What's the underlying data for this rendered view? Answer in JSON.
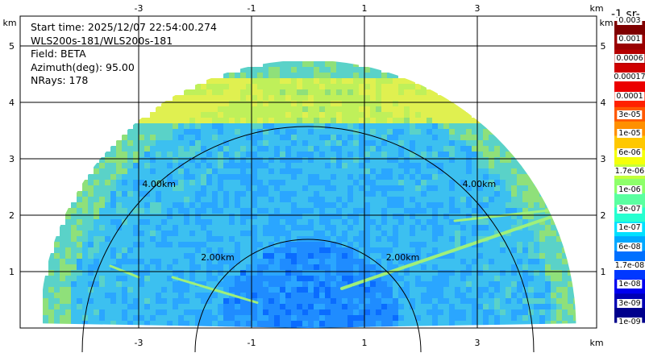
{
  "header": {
    "start_time": "Start time: 2025/12/07 22:54:00.274",
    "instrument": "WLS200s-181/WLS200s-181",
    "field": "Field: BETA",
    "azimuth": "Azimuth(deg): 95.00",
    "nrays": "NRays: 178"
  },
  "axes": {
    "unit": "km",
    "x_ticks": [
      "-3",
      "-1",
      "1",
      "3"
    ],
    "y_ticks": [
      "1",
      "2",
      "3",
      "4",
      "5"
    ],
    "range_rings": [
      "2.00km",
      "4.00km"
    ]
  },
  "colorbar": {
    "title": "-1 sr-",
    "labels": [
      "0.003",
      "0.001",
      "0.0006",
      "0.00017",
      "0.0001",
      "3e-05",
      "1e-05",
      "6e-06",
      "1.7e-06",
      "1e-06",
      "3e-07",
      "1e-07",
      "6e-08",
      "1.7e-08",
      "1e-08",
      "3e-09",
      "1e-09"
    ],
    "colors": [
      "#7f0000",
      "#9a0000",
      "#b50000",
      "#d00000",
      "#eb0000",
      "#ff2000",
      "#ff5800",
      "#ff9000",
      "#ffc800",
      "#f5ff0a",
      "#c3ff3a",
      "#8dff6a",
      "#5affa0",
      "#26ffd0",
      "#00e0ff",
      "#00a8ff",
      "#0070ff",
      "#0038ff",
      "#0000f0",
      "#0000b4",
      "#00008c"
    ]
  },
  "chart_data": {
    "type": "heatmap",
    "description_fields": [
      "Field: BETA"
    ],
    "xlim": [
      -5.4,
      5.0
    ],
    "ylim": [
      0,
      5.0
    ]
  }
}
